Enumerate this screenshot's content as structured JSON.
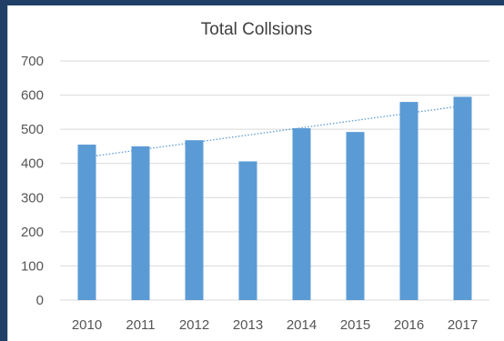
{
  "chart_data": {
    "type": "bar",
    "title": "Total Collsions",
    "categories": [
      "2010",
      "2011",
      "2012",
      "2013",
      "2014",
      "2015",
      "2016",
      "2017"
    ],
    "series": [
      {
        "values": [
          455,
          450,
          468,
          406,
          503,
          492,
          580,
          595
        ]
      }
    ],
    "ylim": [
      0,
      700
    ],
    "yticks": [
      0,
      100,
      200,
      300,
      400,
      500,
      600,
      700
    ],
    "grid": true,
    "trendline": {
      "type": "linear",
      "style": "dotted"
    },
    "colors": {
      "bar": "#5b9bd5",
      "trendline": "#5b9bd5",
      "grid": "#d9d9d9"
    }
  }
}
